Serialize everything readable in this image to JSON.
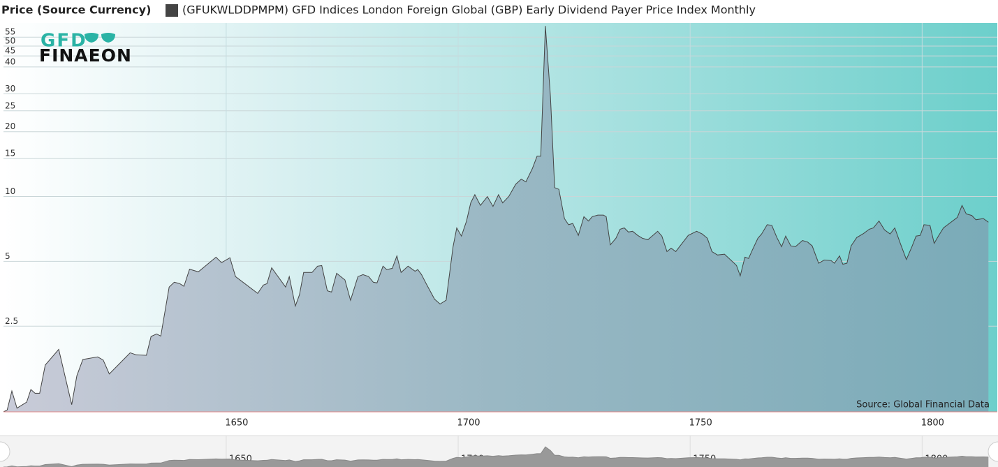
{
  "chart_data": {
    "type": "area",
    "title": "Price (Source Currency)",
    "logo": {
      "top": "GFD",
      "bottom": "FINAEON"
    },
    "source": "Source: Global Financial Data",
    "log_scale": true,
    "grid": true,
    "xlim": [
      1602,
      1815
    ],
    "xticks": [
      1650,
      1700,
      1750,
      1800
    ],
    "ylim": [
      1,
      63
    ],
    "yticks": [
      2.5,
      5,
      10,
      15,
      20,
      25,
      30,
      40,
      45,
      50,
      55
    ],
    "x": [
      1602,
      1602.8,
      1603.8,
      1604.9,
      1607,
      1607.9,
      1608.8,
      1609.8,
      1611,
      1613.9,
      1616.7,
      1617.8,
      1619.1,
      1622.3,
      1623.5,
      1624.8,
      1629.3,
      1630.6,
      1632.8,
      1633.8,
      1635,
      1635.9,
      1637.7,
      1638.8,
      1640,
      1640.9,
      1642.1,
      1644,
      1647.8,
      1649,
      1650.8,
      1652,
      1656.8,
      1658,
      1658.8,
      1659.8,
      1662.8,
      1663.6,
      1664.9,
      1665.8,
      1666.7,
      1668.5,
      1669.7,
      1670.6,
      1671.8,
      1672.7,
      1673.8,
      1675.6,
      1676.8,
      1678.4,
      1679.5,
      1680.7,
      1681.7,
      1682.5,
      1683.8,
      1684.6,
      1685.8,
      1686.8,
      1687.7,
      1689.2,
      1690.7,
      1691.3,
      1692.1,
      1693.1,
      1694.9,
      1696.1,
      1697.4,
      1698.9,
      1699.7,
      1700.7,
      1701.8,
      1702.7,
      1703.6,
      1704.8,
      1706.3,
      1707.5,
      1708.7,
      1709.6,
      1710.9,
      1712.4,
      1713.6,
      1714.6,
      1716,
      1717,
      1717.8,
      1718.8,
      1719.9,
      1720.8,
      1721.7,
      1722.9,
      1723.8,
      1724.7,
      1725.9,
      1727.1,
      1728.1,
      1728.9,
      1730.1,
      1731.3,
      1731.9,
      1732.8,
      1734,
      1734.9,
      1735.8,
      1736.7,
      1737.6,
      1738.7,
      1739.7,
      1740.9,
      1743,
      1743.9,
      1745,
      1745.9,
      1746.9,
      1747.7,
      1749.6,
      1751.4,
      1752.6,
      1753.7,
      1754.7,
      1755.9,
      1757.4,
      1759.5,
      1760,
      1760.8,
      1761.8,
      1762.6,
      1763.4,
      1764.6,
      1765.4,
      1766.6,
      1767.6,
      1768.7,
      1769.7,
      1770.6,
      1771.7,
      1772.7,
      1774.2,
      1775.3,
      1776.3,
      1777.7,
      1778.9,
      1780.4,
      1781.1,
      1782.2,
      1782.9,
      1783.8,
      1784.7,
      1785.9,
      1787.4,
      1788.6,
      1789.5,
      1790.7,
      1791.9,
      1793.1,
      1794.1,
      1795.3,
      1796.6,
      1797.8,
      1798.7,
      1799.6,
      1800.4,
      1801.7,
      1802.6,
      1803.5,
      1804.6,
      1807.6,
      1808.6,
      1809.5,
      1810.7,
      1811.6,
      1813.2,
      1814.3
    ],
    "series": [
      {
        "name": "(GFUKWLDDPMPM) GFD Indices London Foreign Global (GBP) Early Dividend Payer Price Index Monthly",
        "color": "#444444",
        "values": [
          1.0,
          1.02,
          1.25,
          1.04,
          1.11,
          1.27,
          1.22,
          1.22,
          1.65,
          1.95,
          1.08,
          1.47,
          1.75,
          1.8,
          1.74,
          1.5,
          1.88,
          1.84,
          1.83,
          2.24,
          2.3,
          2.25,
          3.8,
          4.0,
          3.94,
          3.83,
          4.6,
          4.47,
          5.23,
          4.93,
          5.2,
          4.25,
          3.55,
          3.88,
          3.94,
          4.67,
          3.8,
          4.25,
          3.1,
          3.5,
          4.44,
          4.44,
          4.75,
          4.78,
          3.65,
          3.6,
          4.4,
          4.1,
          3.3,
          4.25,
          4.34,
          4.25,
          4.0,
          3.97,
          4.75,
          4.58,
          4.64,
          5.3,
          4.44,
          4.75,
          4.5,
          4.58,
          4.34,
          3.94,
          3.34,
          3.17,
          3.3,
          5.85,
          7.15,
          6.55,
          7.7,
          9.35,
          10.2,
          9.1,
          10,
          9.0,
          10.2,
          9.35,
          10,
          11.4,
          12.05,
          11.7,
          13.5,
          15.4,
          15.4,
          62,
          29,
          11,
          10.8,
          7.9,
          7.4,
          7.5,
          6.6,
          8.06,
          7.7,
          8.06,
          8.2,
          8.2,
          8.06,
          5.97,
          6.4,
          7.05,
          7.15,
          6.84,
          6.9,
          6.6,
          6.4,
          6.3,
          6.9,
          6.55,
          5.55,
          5.76,
          5.55,
          5.85,
          6.6,
          6.9,
          6.7,
          6.4,
          5.55,
          5.35,
          5.4,
          4.9,
          4.78,
          4.28,
          5.23,
          5.16,
          5.64,
          6.4,
          6.7,
          7.4,
          7.35,
          6.45,
          5.85,
          6.55,
          5.9,
          5.85,
          6.25,
          6.15,
          5.9,
          4.9,
          5.07,
          5.04,
          4.9,
          5.3,
          4.85,
          4.9,
          5.9,
          6.45,
          6.74,
          7.05,
          7.15,
          7.7,
          7.0,
          6.7,
          7.15,
          6.06,
          5.1,
          5.85,
          6.55,
          6.6,
          7.4,
          7.35,
          6.06,
          6.55,
          7.15,
          8,
          9.1,
          8.3,
          8.17,
          7.8,
          7.9,
          7.6
        ]
      }
    ]
  }
}
